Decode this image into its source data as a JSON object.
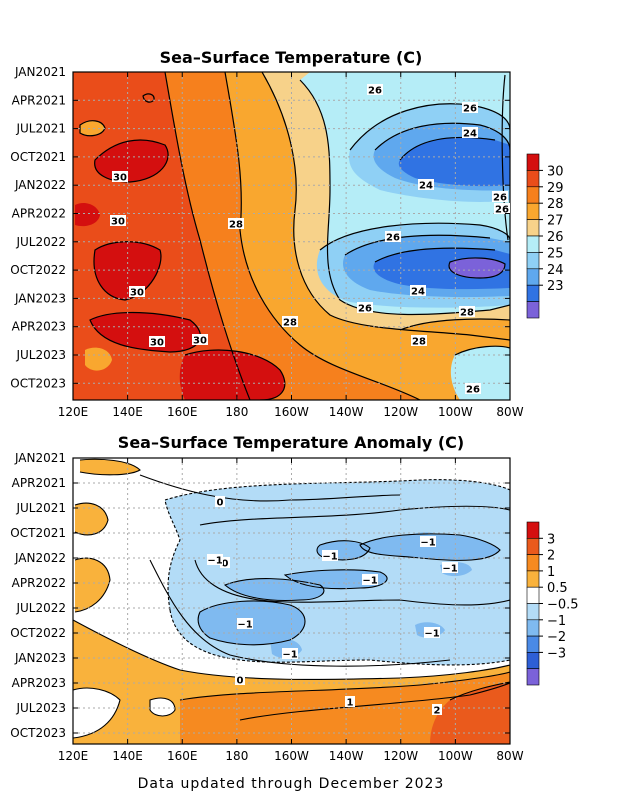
{
  "chart_data": [
    {
      "type": "heatmap",
      "title": "Sea–Surface Temperature (C)",
      "x_tick_labels": [
        "120E",
        "140E",
        "160E",
        "180",
        "160W",
        "140W",
        "120W",
        "100W",
        "80W"
      ],
      "y_tick_labels": [
        "JAN2021",
        "APR2021",
        "JUL2021",
        "OCT2021",
        "JAN2022",
        "APR2022",
        "JUL2022",
        "OCT2022",
        "JAN2023",
        "APR2023",
        "JUL2023",
        "OCT2023"
      ],
      "x_range_lon_east": [
        120,
        280
      ],
      "y_range": [
        "JAN2021",
        "DEC2023"
      ],
      "colorbar": {
        "labels": [
          "30",
          "29",
          "28",
          "27",
          "26",
          "25",
          "24",
          "23"
        ],
        "colors": [
          "#d40f0f",
          "#ea4d1a",
          "#f6801d",
          "#f9a72f",
          "#f7d28a",
          "#b5edf7",
          "#8fd0f5",
          "#5fa8ee",
          "#3073e3",
          "#7b62d9"
        ]
      },
      "contour_labels": [
        "26",
        "26",
        "24",
        "24",
        "26",
        "26",
        "30",
        "30",
        "28",
        "26",
        "30",
        "24",
        "28",
        "26",
        "28",
        "30",
        "30",
        "28",
        "26"
      ],
      "grid": true
    },
    {
      "type": "heatmap",
      "title": "Sea–Surface Temperature Anomaly (C)",
      "x_tick_labels": [
        "120E",
        "140E",
        "160E",
        "180",
        "160W",
        "140W",
        "120W",
        "100W",
        "80W"
      ],
      "y_tick_labels": [
        "JAN2021",
        "APR2021",
        "JUL2021",
        "OCT2021",
        "JAN2022",
        "APR2022",
        "JUL2022",
        "OCT2022",
        "JAN2023",
        "APR2023",
        "JUL2023",
        "OCT2023"
      ],
      "x_range_lon_east": [
        120,
        280
      ],
      "y_range": [
        "JAN2021",
        "DEC2023"
      ],
      "colorbar": {
        "labels": [
          "3",
          "2",
          "1",
          "0.5",
          "−0.5",
          "−1",
          "−2",
          "−3"
        ],
        "colors": [
          "#d40f0f",
          "#ea5a1c",
          "#f68a20",
          "#f9b23c",
          "#ffffff",
          "#b3dcf7",
          "#7fbaf0",
          "#4a8ae6",
          "#2e5fd6",
          "#7b62d9"
        ]
      },
      "contour_labels": [
        "0",
        "0",
        "−1",
        "−1",
        "−1",
        "−1",
        "−1",
        "−1",
        "−1",
        "−1",
        "0",
        "1",
        "2"
      ],
      "grid": true
    }
  ],
  "footer": "Data updated through December 2023"
}
